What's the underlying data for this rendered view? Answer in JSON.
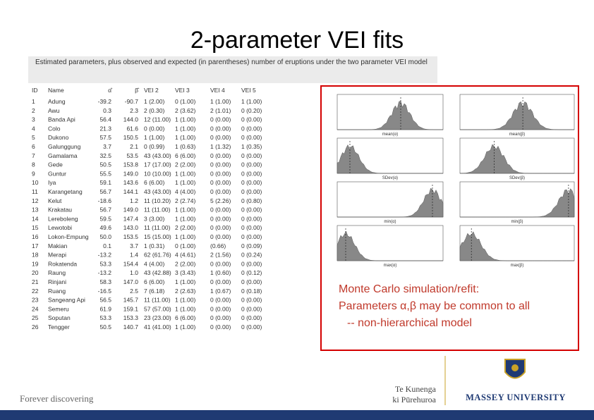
{
  "title": "2-parameter VEI fits",
  "table": {
    "caption": "Estimated parameters, plus observed and expected (in parentheses) number of eruptions under the two parameter VEI model",
    "headers": [
      "ID",
      "Name",
      "α̂",
      "β̂",
      "VEI 2",
      "VEI 3",
      "VEI 4",
      "VEI 5"
    ],
    "rows": [
      [
        "1",
        "Adung",
        "-39.2",
        "-90.7",
        "1 (2.00)",
        "0 (1.00)",
        "1 (1.00)",
        "1 (1.00)"
      ],
      [
        "2",
        "Awu",
        "0.3",
        "2.3",
        "2 (0.30)",
        "2 (3.62)",
        "2 (1.01)",
        "0 (0.20)"
      ],
      [
        "3",
        "Banda Api",
        "56.4",
        "144.0",
        "12 (11.00)",
        "1 (1.00)",
        "0 (0.00)",
        "0 (0.00)"
      ],
      [
        "4",
        "Colo",
        "21.3",
        "61.6",
        "0 (0.00)",
        "1 (1.00)",
        "0 (0.00)",
        "0 (0.00)"
      ],
      [
        "5",
        "Dukono",
        "57.5",
        "150.5",
        "1 (1.00)",
        "1 (1.00)",
        "0 (0.00)",
        "0 (0.00)"
      ],
      [
        "6",
        "Galunggung",
        "3.7",
        "2.1",
        "0 (0.99)",
        "1 (0.63)",
        "1 (1.32)",
        "1 (0.35)"
      ],
      [
        "7",
        "Gamalama",
        "32.5",
        "53.5",
        "43 (43.00)",
        "6 (6.00)",
        "0 (0.00)",
        "0 (0.00)"
      ],
      [
        "8",
        "Gede",
        "50.5",
        "153.8",
        "17 (17.00)",
        "2 (2.00)",
        "0 (0.00)",
        "0 (0.00)"
      ],
      [
        "9",
        "Guntur",
        "55.5",
        "149.0",
        "10 (10.00)",
        "1 (1.00)",
        "0 (0.00)",
        "0 (0.00)"
      ],
      [
        "10",
        "Iya",
        "59.1",
        "143.6",
        "6 (6.00)",
        "1 (1.00)",
        "0 (0.00)",
        "0 (0.00)"
      ],
      [
        "11",
        "Karangetang",
        "56.7",
        "144.1",
        "43 (43.00)",
        "4 (4.00)",
        "0 (0.00)",
        "0 (0.00)"
      ],
      [
        "12",
        "Kelut",
        "-18.6",
        "1.2",
        "11 (10.20)",
        "2 (2.74)",
        "5 (2.26)",
        "0 (0.80)"
      ],
      [
        "13",
        "Krakatau",
        "56.7",
        "149.0",
        "11 (11.00)",
        "1 (1.00)",
        "0 (0.00)",
        "0 (0.00)"
      ],
      [
        "14",
        "Lereboleng",
        "59.5",
        "147.4",
        "3 (3.00)",
        "1 (1.00)",
        "0 (0.00)",
        "0 (0.00)"
      ],
      [
        "15",
        "Lewotobi",
        "49.6",
        "143.0",
        "11 (11.00)",
        "2 (2.00)",
        "0 (0.00)",
        "0 (0.00)"
      ],
      [
        "16",
        "Lokon-Empung",
        "50.0",
        "153.5",
        "15 (15.00)",
        "1 (1.00)",
        "0 (0.00)",
        "0 (0.00)"
      ],
      [
        "17",
        "Makian",
        "0.1",
        "3.7",
        "1 (0.31)",
        "0 (1.00)",
        "(0.66)",
        "0 (0.09)"
      ],
      [
        "18",
        "Merapi",
        "-13.2",
        "1.4",
        "62 (61.76)",
        "4 (4.61)",
        "2 (1.56)",
        "0 (0.24)"
      ],
      [
        "19",
        "Rokatenda",
        "53.3",
        "154.4",
        "4 (4.00)",
        "2 (2.00)",
        "0 (0.00)",
        "0 (0.00)"
      ],
      [
        "20",
        "Raung",
        "-13.2",
        "1.0",
        "43 (42.88)",
        "3 (3.43)",
        "1 (0.60)",
        "0 (0.12)"
      ],
      [
        "21",
        "Rinjani",
        "58.3",
        "147.0",
        "6 (6.00)",
        "1 (1.00)",
        "0 (0.00)",
        "0 (0.00)"
      ],
      [
        "22",
        "Ruang",
        "-16.5",
        "2.5",
        "7 (6.18)",
        "2 (2.63)",
        "1 (0.67)",
        "0 (0.18)"
      ],
      [
        "23",
        "Sangeang Api",
        "56.5",
        "145.7",
        "11 (11.00)",
        "1 (1.00)",
        "0 (0.00)",
        "0 (0.00)"
      ],
      [
        "24",
        "Semeru",
        "61.9",
        "159.1",
        "57 (57.00)",
        "1 (1.00)",
        "0 (0.00)",
        "0 (0.00)"
      ],
      [
        "25",
        "Soputan",
        "53.3",
        "153.3",
        "23 (23.00)",
        "6 (6.00)",
        "0 (0.00)",
        "0 (0.00)"
      ],
      [
        "26",
        "Tengger",
        "50.5",
        "140.7",
        "41 (41.00)",
        "1 (1.00)",
        "0 (0.00)",
        "0 (0.00)"
      ]
    ]
  },
  "panels": [
    "mean(α)",
    "mean(β)",
    "SDev(α)",
    "SDev(β)",
    "min(α)",
    "min(β)",
    "max(α)",
    "max(β)"
  ],
  "note": [
    "Monte Carlo simulation/refit:",
    "Parameters α,β may be common to all",
    "-- non-hierarchical model"
  ],
  "footer": {
    "tagline": "Forever discovering",
    "maori_1": "Te Kunenga",
    "maori_2": "ki Pūrehuroa",
    "university": "MASSEY UNIVERSITY"
  }
}
